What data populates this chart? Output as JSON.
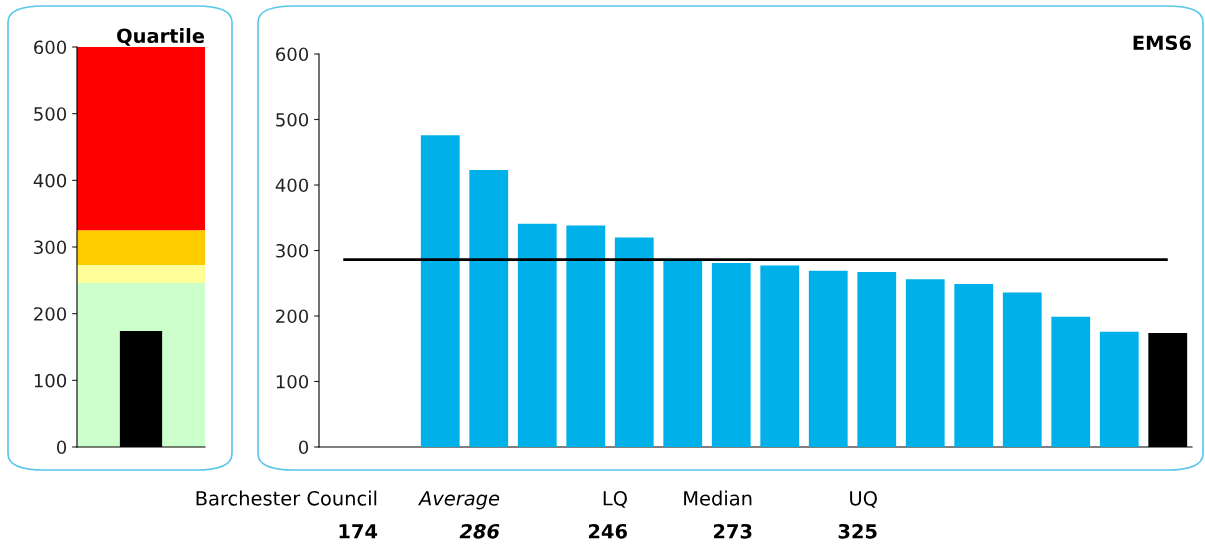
{
  "chart_data": [
    {
      "type": "bar",
      "title": "Quartile",
      "categories": [
        null
      ],
      "values": [
        174
      ],
      "color": "#000000",
      "ylim": [
        0,
        600
      ],
      "yticks": [
        0,
        100,
        200,
        300,
        400,
        500,
        600
      ],
      "grid": false,
      "legend": false,
      "bands": [
        {
          "axis": "y",
          "from": 0,
          "to": 246,
          "color": "#ccffcc"
        },
        {
          "axis": "y",
          "from": 246,
          "to": 273,
          "color": "#ffff99"
        },
        {
          "axis": "y",
          "from": 273,
          "to": 325,
          "color": "#ffcc00"
        },
        {
          "axis": "y",
          "from": 325,
          "to": 600,
          "color": "#ff0000"
        }
      ]
    },
    {
      "type": "bar",
      "title": "EMS6",
      "categories": [
        null,
        null,
        null,
        null,
        null,
        null,
        null,
        null,
        null,
        null,
        null,
        null,
        null,
        null,
        null,
        null,
        null,
        null
      ],
      "values": [
        null,
        null,
        476,
        423,
        341,
        338,
        320,
        285,
        281,
        277,
        269,
        267,
        256,
        249,
        236,
        199,
        176,
        174
      ],
      "colors": [
        "#00b0e8",
        "#00b0e8",
        "#00b0e8",
        "#00b0e8",
        "#00b0e8",
        "#00b0e8",
        "#00b0e8",
        "#00b0e8",
        "#00b0e8",
        "#00b0e8",
        "#00b0e8",
        "#00b0e8",
        "#00b0e8",
        "#00b0e8",
        "#00b0e8",
        "#00b0e8",
        "#00b0e8",
        "#000000"
      ],
      "ylim": [
        0,
        600
      ],
      "yticks": [
        0,
        100,
        200,
        300,
        400,
        500,
        600
      ],
      "grid": false,
      "legend": false,
      "ref_lines": [
        {
          "axis": "y",
          "value": 286,
          "color": "#000000",
          "line_style": "solid"
        }
      ],
      "annotations": [
        "Barchester Council",
        "Average",
        "LQ",
        "Median",
        "UQ",
        "174",
        "286",
        "246",
        "273",
        "325"
      ]
    }
  ]
}
